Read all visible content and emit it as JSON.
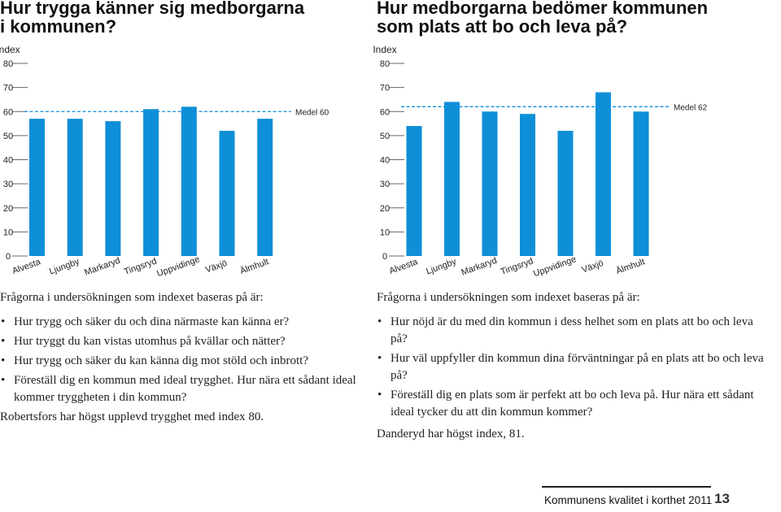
{
  "colors": {
    "bar": "#0f8fd8",
    "medel_line": "#0f8fd8",
    "axis": "#666666",
    "text": "#1a1a1a"
  },
  "left": {
    "title_lines": [
      "Hur trygga känner sig medborgarna",
      "i kommunen?"
    ],
    "chart_data": {
      "type": "bar",
      "categories": [
        "Alvesta",
        "Ljungby",
        "Markaryd",
        "Tingsryd",
        "Uppvidinge",
        "Växjö",
        "Älmhult"
      ],
      "values": [
        57,
        57,
        56,
        61,
        62,
        52,
        57
      ],
      "ylabel": "Index",
      "ylim": [
        0,
        80
      ],
      "yticks": [
        0,
        10,
        20,
        30,
        40,
        50,
        60,
        70,
        80
      ],
      "medel": 60,
      "medel_label": "Medel 60",
      "grid": false
    },
    "intro": "Frågorna i undersökningen som indexet baseras på är:",
    "questions": [
      "Hur trygg och säker du och dina närmaste kan känna er?",
      "Hur tryggt du kan vistas utomhus på kvällar och nätter?",
      "Hur trygg och säker du kan känna dig mot stöld och inbrott?",
      "Föreställ dig en kommun med ideal trygghet. Hur nära ett sådant ideal kommer tryggheten i din kommun?"
    ],
    "conclusion": "Robertsfors har högst upplevd trygghet med index 80."
  },
  "right": {
    "title_lines": [
      "Hur medborgarna bedömer kommunen",
      "som plats att bo och leva på?"
    ],
    "chart_data": {
      "type": "bar",
      "categories": [
        "Alvesta",
        "Ljungby",
        "Markaryd",
        "Tingsryd",
        "Uppvidinge",
        "Växjö",
        "Älmhult"
      ],
      "values": [
        54,
        64,
        60,
        59,
        52,
        68,
        60
      ],
      "ylabel": "Index",
      "ylim": [
        0,
        80
      ],
      "yticks": [
        0,
        10,
        20,
        30,
        40,
        50,
        60,
        70,
        80
      ],
      "medel": 62,
      "medel_label": "Medel 62",
      "grid": false
    },
    "intro": "Frågorna i undersökningen som indexet baseras på är:",
    "questions": [
      "Hur nöjd är du med din kommun i dess helhet som en plats att bo och leva på?",
      "Hur väl uppfyller din kommun dina förväntningar på en plats att bo och leva på?",
      "Föreställ dig en plats som är perfekt att bo och leva på. Hur nära ett sådant ideal tycker du att din kommun kommer?"
    ],
    "conclusion": "Danderyd har högst index, 81."
  },
  "footer": {
    "text": "Kommunens kvalitet i korthet 2011",
    "page": "13"
  }
}
